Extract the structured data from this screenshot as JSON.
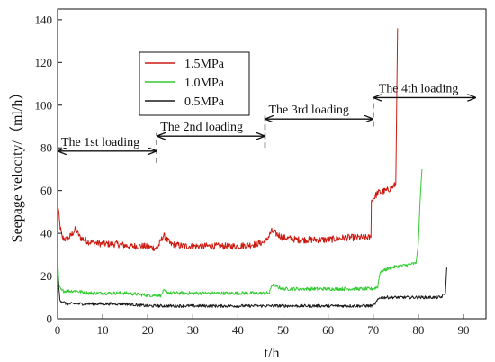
{
  "chart_data": {
    "type": "line",
    "title": "",
    "xlabel": "t/h",
    "ylabel": "Seepage velocity/（ml/h）",
    "xlim": [
      0,
      95
    ],
    "ylim": [
      0,
      145
    ],
    "xticks": [
      0,
      10,
      20,
      30,
      40,
      50,
      60,
      70,
      80,
      90
    ],
    "yticks": [
      0,
      20,
      40,
      60,
      80,
      100,
      120,
      140
    ],
    "grid": false,
    "legend_position": "top-left",
    "series": [
      {
        "name": "1.5MPa",
        "color": "#cc1a10",
        "x": [
          0,
          0.5,
          1,
          2,
          3,
          4,
          5,
          7,
          10,
          13,
          16,
          19,
          22,
          22.1,
          23.5,
          25,
          28,
          32,
          36,
          40,
          44,
          46,
          46.1,
          47.5,
          50,
          53,
          56,
          60,
          64,
          68,
          69.5,
          69.6,
          71,
          73,
          74.5,
          75,
          75.2,
          75.4
        ],
        "y": [
          55,
          44,
          38,
          37,
          39,
          42,
          38,
          36,
          35,
          35,
          34,
          34,
          33,
          33,
          39,
          35,
          34,
          34,
          34,
          34,
          35,
          36,
          36,
          41,
          38,
          37,
          37,
          37,
          38,
          38,
          38,
          55,
          59,
          60,
          62,
          63,
          100,
          136
        ]
      },
      {
        "name": "1.0MPa",
        "color": "#33cc33",
        "x": [
          0,
          0.3,
          1,
          2,
          4,
          7,
          10,
          15,
          20,
          23,
          23.5,
          25,
          30,
          35,
          40,
          45,
          47,
          47.5,
          50,
          55,
          60,
          65,
          70,
          71,
          71.5,
          74,
          77,
          79.5,
          80,
          80.4,
          80.8
        ],
        "y": [
          30,
          15,
          13,
          13,
          13,
          12,
          12,
          12,
          11,
          11,
          13,
          12,
          12,
          12,
          12,
          12,
          12,
          16,
          14,
          14,
          14,
          14,
          14,
          15,
          22,
          24,
          25,
          26,
          35,
          55,
          70
        ]
      },
      {
        "name": "0.5MPa",
        "color": "#1a1a1a",
        "x": [
          0,
          0.5,
          1,
          2,
          5,
          10,
          15,
          20,
          25,
          30,
          35,
          40,
          45,
          50,
          55,
          60,
          65,
          70,
          71.5,
          75,
          80,
          85,
          86,
          86.3
        ],
        "y": [
          22,
          9,
          8,
          7,
          7,
          7,
          7,
          6,
          6,
          6,
          6,
          6,
          6,
          6,
          6,
          6,
          6,
          6,
          10,
          10,
          10,
          10,
          12,
          24
        ]
      }
    ],
    "stages": [
      {
        "label": "The 1st loading",
        "start": 0,
        "end": 22,
        "y": 78.5
      },
      {
        "label": "The 2nd loading",
        "start": 22,
        "end": 46,
        "y": 85.5
      },
      {
        "label": "The 3rd loading",
        "start": 46,
        "end": 70,
        "y": 93.5
      },
      {
        "label": "The 4th loading",
        "start": 70,
        "end": 95,
        "y": 103.5
      }
    ],
    "stage_boundaries": [
      22,
      46,
      70
    ]
  }
}
